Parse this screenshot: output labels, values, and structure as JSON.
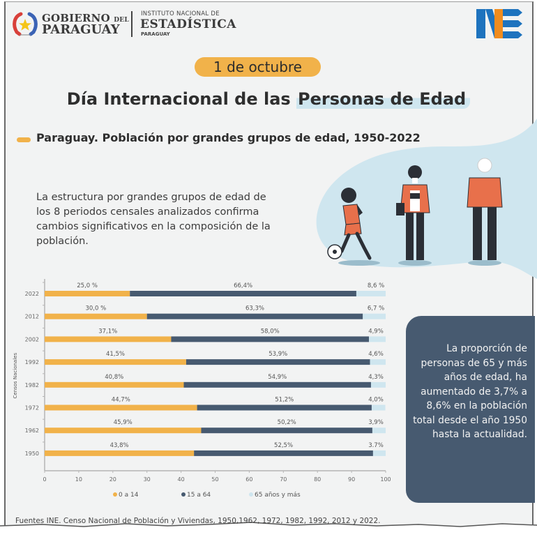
{
  "header": {
    "gov_line1": "GOBIERNO",
    "gov_line1_small": "DEL",
    "gov_line2": "PARAGUAY",
    "ine_line1": "INSTITUTO NACIONAL DE",
    "ine_line2": "ESTADÍSTICA",
    "ine_line3": "PARAGUAY",
    "logo_icon": "gobierno-paraguay-seal",
    "ine_logo_icon": "ine-logo",
    "ine_logo_text": "NE"
  },
  "date_badge": "1 de octubre",
  "title": {
    "part1": "Día Internacional de las ",
    "part2": "Personas de Edad"
  },
  "subtitle": "Paraguay. Población por grandes grupos de edad, 1950-2022",
  "intro_text": "La estructura por grandes grupos de edad de los 8 periodos censales analizados confirma cambios significativos en la composición de la población.",
  "info_box_text": "La proporción de personas de 65 y más años de edad, ha aumentado de 3,7% a 8,6% en la población total desde el año 1950 hasta la actualidad.",
  "sources": "Fuentes INE. Censo Nacional de Población y Viviendas, 1950,1962, 1972, 1982, 1992, 2012 y 2022.",
  "colors": {
    "orange": "#f1b24a",
    "navy": "#475a70",
    "light_blue": "#cfe6ef",
    "ine_blue": "#1e73be",
    "ine_orange": "#f08c1e"
  },
  "chart_data": {
    "type": "bar",
    "orientation": "horizontal",
    "stacked": true,
    "title": "Paraguay. Población por grandes grupos de edad, 1950-2022",
    "xlabel": "",
    "ylabel": "Censos Nacionales",
    "xlim": [
      0,
      100
    ],
    "xticks": [
      "0",
      "10",
      "20",
      "30",
      "40",
      "50",
      "60",
      "70",
      "80",
      "90",
      "100"
    ],
    "categories": [
      "2022",
      "2012",
      "2002",
      "1992",
      "1982",
      "1972",
      "1962",
      "1950"
    ],
    "series": [
      {
        "name": "0 a 14",
        "color": "#f1b24a",
        "values": [
          25.0,
          30.0,
          37.1,
          41.5,
          40.8,
          44.7,
          45.9,
          43.8
        ],
        "labels": [
          "25,0 %",
          "30,0 %",
          "37,1%",
          "41,5%",
          "40,8%",
          "44,7%",
          "45,9%",
          "43,8%"
        ]
      },
      {
        "name": "15 a 64",
        "color": "#475a70",
        "values": [
          66.4,
          63.3,
          58.0,
          53.9,
          54.9,
          51.2,
          50.2,
          52.5
        ],
        "labels": [
          "66,4%",
          "63,3%",
          "58,0%",
          "53,9%",
          "54,9%",
          "51,2%",
          "50,2%",
          "52,5%"
        ]
      },
      {
        "name": "65 años y más",
        "color": "#cfe6ef",
        "values": [
          8.6,
          6.7,
          4.9,
          4.6,
          4.3,
          4.0,
          3.9,
          3.7
        ],
        "labels": [
          "8,6 %",
          "6,7 %",
          "4,9%",
          "4,6%",
          "4,3%",
          "4,0%",
          "3,9%",
          "3.7%"
        ]
      }
    ],
    "legend": [
      "0 a 14",
      "15 a 64",
      "65 años y más"
    ],
    "legend_position": "bottom",
    "grid": false
  }
}
